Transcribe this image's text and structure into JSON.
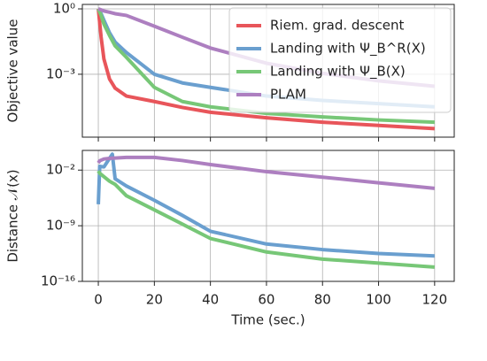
{
  "chart_data": [
    {
      "type": "line",
      "y_label": "Objective value",
      "log_y": true,
      "grid": true,
      "legend": "upper right",
      "xtick_labels": false,
      "x": [
        0,
        1,
        2,
        4,
        6,
        10,
        20,
        30,
        40,
        60,
        80,
        100,
        120
      ],
      "xlim": [
        -5.7,
        127
      ],
      "xticks": [
        0,
        20,
        40,
        60,
        80,
        100,
        120
      ],
      "ylim": [
        1.3e-06,
        1.6
      ],
      "yticks": [
        {
          "value": 1,
          "label": "10⁰"
        },
        {
          "value": 0.001,
          "label": "10⁻³"
        }
      ],
      "series": [
        {
          "name": "Riem. grad. descent",
          "color": "#e8555a",
          "values": [
            1,
            0.05,
            0.005,
            0.0006,
            0.00023,
            0.0001,
            5.6e-05,
            3e-05,
            1.8e-05,
            1e-05,
            6.3e-06,
            4.5e-06,
            3.2e-06
          ]
        },
        {
          "name": "Landing with Ψ_B^R(X)",
          "color": "#6a9fcf",
          "values": [
            1,
            0.6,
            0.3,
            0.08,
            0.03,
            0.01,
            0.001,
            0.0004,
            0.00025,
            0.0001,
            6.3e-05,
            4.5e-05,
            3.2e-05
          ]
        },
        {
          "name": "Landing with Ψ_B(X)",
          "color": "#77c777",
          "values": [
            1,
            0.5,
            0.2,
            0.06,
            0.02,
            0.006,
            0.00025,
            5.6e-05,
            3.2e-05,
            1.6e-05,
            1.1e-05,
            8e-06,
            6.3e-06
          ]
        },
        {
          "name": "PLAM",
          "color": "#ad7fc0",
          "values": [
            1,
            0.9,
            0.8,
            0.7,
            0.6,
            0.5,
            0.16,
            0.05,
            0.016,
            0.0032,
            0.0011,
            0.0005,
            0.00028
          ]
        }
      ]
    },
    {
      "type": "line",
      "y_label": "Distance 𝒩(x)",
      "x_label": "Time (sec.)",
      "log_y": true,
      "grid": true,
      "xtick_labels": true,
      "x": [
        0,
        0.5,
        2,
        4,
        5,
        6,
        10,
        20,
        30,
        40,
        60,
        80,
        100,
        120
      ],
      "xlim": [
        -5.7,
        127
      ],
      "xticks": [
        0,
        20,
        40,
        60,
        80,
        100,
        120
      ],
      "ylim": [
        1e-16,
        3
      ],
      "yticks": [
        {
          "value": 0.01,
          "label": "10⁻²"
        },
        {
          "value": 1e-09,
          "label": "10⁻⁹"
        },
        {
          "value": 1e-16,
          "label": "10⁻¹⁶"
        }
      ],
      "series": [
        {
          "name": "Landing with Ψ_B^R(X)",
          "color": "#6a9fcf",
          "values": [
            5e-07,
            0.03,
            0.025,
            0.3,
            1,
            0.0008,
            0.0001,
            1.6e-06,
            2e-08,
            2e-10,
            5e-12,
            1e-12,
            3.2e-13,
            1.6e-13
          ]
        },
        {
          "name": "Landing with Ψ_B(X)",
          "color": "#77c777",
          "values": [
            0.008,
            0.004,
            0.0015,
            0.0004,
            0.00025,
            0.00016,
            6e-06,
            1e-07,
            1.6e-09,
            2.5e-11,
            5e-13,
            6.3e-14,
            2e-14,
            6.3e-15
          ]
        },
        {
          "name": "PLAM",
          "color": "#ad7fc0",
          "values": [
            0.08,
            0.15,
            0.25,
            0.3,
            0.32,
            0.33,
            0.4,
            0.4,
            0.16,
            0.05,
            0.0063,
            0.0013,
            0.00025,
            5e-05
          ]
        }
      ]
    }
  ]
}
